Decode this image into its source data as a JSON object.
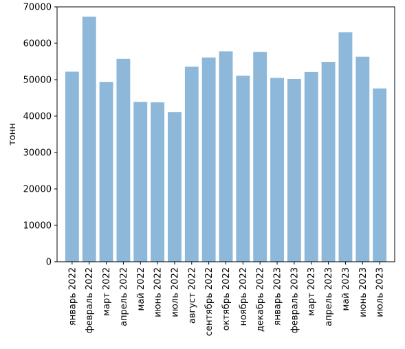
{
  "chart_data": {
    "type": "bar",
    "title": "",
    "xlabel": "",
    "ylabel": "тонн",
    "categories": [
      "январь 2022",
      "февраль 2022",
      "март 2022",
      "апрель 2022",
      "май 2022",
      "июнь 2022",
      "июль 2022",
      "август 2022",
      "сентябрь 2022",
      "октябрь 2022",
      "ноябрь 2022",
      "декабрь 2022",
      "январь 2023",
      "февраль 2023",
      "март 2023",
      "апрель 2023",
      "май 2023",
      "июнь 2023",
      "июль 2023"
    ],
    "values": [
      52200,
      67300,
      49400,
      55700,
      43900,
      43800,
      41100,
      53600,
      56100,
      57800,
      51100,
      57600,
      50500,
      50200,
      52100,
      54900,
      63000,
      56300,
      47600
    ],
    "ylim": [
      0,
      70000
    ],
    "yticks": [
      "0",
      "10000",
      "20000",
      "30000",
      "40000",
      "50000",
      "60000",
      "70000"
    ],
    "bar_color": "#8db8da",
    "grid": false,
    "legend": "none"
  }
}
